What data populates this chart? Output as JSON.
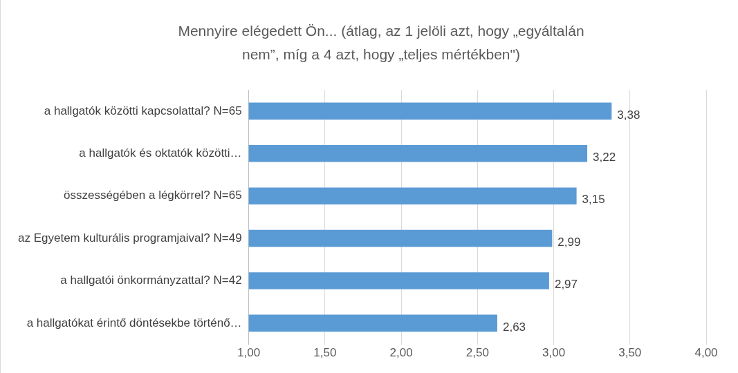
{
  "chart_data": {
    "type": "bar",
    "orientation": "horizontal",
    "title": "Mennyire elégedett Ön... (átlag, az 1 jelöli azt, hogy „egyáltalán nem”, míg a 4 azt, hogy „teljes mértékben\")",
    "categories": [
      "a hallgatók közötti kapcsolattal? N=65",
      "a hallgatók és oktatók közötti…",
      "összességében a légkörrel? N=65",
      "az Egyetem kulturális programjaival? N=49",
      "a hallgatói önkormányzattal? N=42",
      "a hallgatókat érintő döntésekbe történő…"
    ],
    "values": [
      3.38,
      3.22,
      3.15,
      2.99,
      2.97,
      2.63
    ],
    "value_labels": [
      "3,38",
      "3,22",
      "3,15",
      "2,99",
      "2,97",
      "2,63"
    ],
    "color": "#5b9bd5",
    "xlim": [
      1,
      4
    ],
    "xticks": [
      {
        "value": 1,
        "label": "1,00"
      },
      {
        "value": 1.5,
        "label": "1,50"
      },
      {
        "value": 2,
        "label": "2,00"
      },
      {
        "value": 2.5,
        "label": "2,50"
      },
      {
        "value": 3,
        "label": "3,00"
      },
      {
        "value": 3.5,
        "label": "3,50"
      },
      {
        "value": 4,
        "label": "4,00"
      }
    ],
    "grid": "x",
    "legend": false
  }
}
